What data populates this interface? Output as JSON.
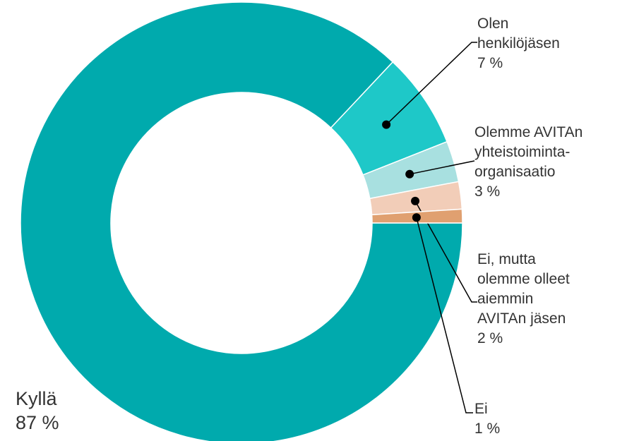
{
  "chart_data": {
    "type": "donut",
    "categories": [
      "Kyllä",
      "Olen henkilöjäsen",
      "Olemme AVITAn yhteistoiminta-organisaatio",
      "Ei, mutta olemme olleet aiemmin AVITAn jäsen",
      "Ei"
    ],
    "values": [
      87,
      7,
      3,
      2,
      1
    ],
    "value_labels": [
      "87 %",
      "7 %",
      "3 %",
      "2 %",
      "1 %"
    ],
    "colors": [
      "#00aaad",
      "#1ec8c8",
      "#a8e0e0",
      "#f2cdb8",
      "#e0a070"
    ]
  }
}
